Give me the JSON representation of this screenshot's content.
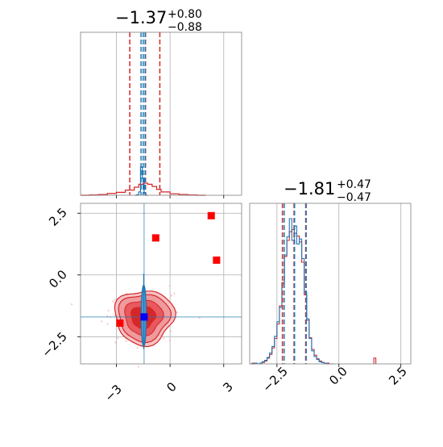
{
  "chart_data": [
    {
      "panel": "marginal-param-1",
      "type": "histogram",
      "title": {
        "value": "−1.37",
        "plus": "+0.80",
        "minus": "−0.88"
      },
      "xlim": [
        -5,
        4
      ],
      "grid": true,
      "series": [
        {
          "color": "#d62728",
          "bin_edges": [
            -5.0,
            -4.5,
            -4.0,
            -3.5,
            -3.0,
            -2.5,
            -2.0,
            -1.75,
            -1.5,
            -1.25,
            -1.0,
            -0.75,
            -0.5,
            0.0,
            0.5,
            1.0,
            1.5,
            2.0
          ],
          "counts": [
            0,
            1,
            2,
            5,
            8,
            14,
            22,
            30,
            33,
            30,
            24,
            16,
            9,
            4,
            2,
            1,
            0
          ],
          "quantile_lines": [
            -2.25,
            -1.37,
            -0.57
          ]
        },
        {
          "color": "#1f77b4",
          "bin_edges": [
            -1.95,
            -1.85,
            -1.75,
            -1.65,
            -1.55,
            -1.45,
            -1.35,
            -1.25
          ],
          "counts": [
            0,
            2,
            12,
            100,
            60,
            8,
            0
          ],
          "quantile_lines": [
            -1.62,
            -1.5,
            -1.39
          ]
        }
      ]
    },
    {
      "panel": "2d-contour",
      "type": "contour",
      "xlim": [
        -5,
        4
      ],
      "ylim": [
        -3.6,
        2.9
      ],
      "xticks": [
        "−3",
        "0",
        "3"
      ],
      "yticks": [
        "2.5",
        "0.0",
        "−2.5"
      ],
      "grid": true,
      "red_outliers": [
        [
          2.3,
          2.4
        ],
        [
          -0.8,
          1.5
        ],
        [
          2.6,
          0.6
        ],
        [
          -2.8,
          -1.95
        ]
      ],
      "blue_marker": [
        -1.45,
        -1.7
      ],
      "reference_lines": {
        "x": -1.45,
        "y": -1.7
      }
    },
    {
      "panel": "marginal-param-2",
      "type": "histogram",
      "title": {
        "value": "−1.81",
        "plus": "+0.47",
        "minus": "−0.47"
      },
      "xlim": [
        -3.6,
        2.9
      ],
      "xticks": [
        "−2.5",
        "0.0",
        "2.5"
      ],
      "grid": true,
      "series": [
        {
          "color": "#d62728",
          "bin_edges": [
            -3.6,
            -3.5,
            -3.4,
            -3.3,
            -3.2,
            -3.1,
            -3.0,
            -2.9,
            -2.8,
            -2.7,
            -2.6,
            -2.5,
            -2.4,
            -2.3,
            -2.2,
            -2.1,
            -2.0,
            -1.9,
            -1.8,
            -1.7,
            -1.6,
            -1.5,
            -1.4,
            -1.3,
            -1.2,
            -1.1,
            -1.0,
            -0.9,
            -0.8,
            -0.7,
            -0.6,
            -0.5,
            -0.4,
            -0.3,
            -0.2
          ],
          "counts": [
            0,
            1,
            1,
            0,
            1,
            2,
            4,
            8,
            13,
            22,
            35,
            55,
            80,
            112,
            148,
            170,
            182,
            185,
            180,
            176,
            168,
            140,
            95,
            60,
            36,
            20,
            12,
            7,
            4,
            2,
            1,
            1,
            0,
            0
          ],
          "quantile_lines": [
            -2.28,
            -1.81,
            -1.34
          ]
        },
        {
          "color": "#1f77b4",
          "bin_edges": [
            -3.6,
            -3.5,
            -3.4,
            -3.3,
            -3.2,
            -3.1,
            -3.0,
            -2.9,
            -2.8,
            -2.7,
            -2.6,
            -2.5,
            -2.4,
            -2.3,
            -2.2,
            -2.1,
            -2.0,
            -1.9,
            -1.8,
            -1.7,
            -1.6,
            -1.5,
            -1.4,
            -1.3,
            -1.2,
            -1.1,
            -1.0,
            -0.9,
            -0.8,
            -0.7,
            -0.6,
            -0.5,
            -0.4,
            -0.3,
            -0.2
          ],
          "counts": [
            0,
            0,
            1,
            0,
            1,
            3,
            5,
            9,
            15,
            24,
            38,
            58,
            78,
            110,
            150,
            175,
            200,
            170,
            190,
            165,
            172,
            145,
            98,
            62,
            35,
            18,
            10,
            6,
            3,
            2,
            1,
            0,
            0,
            0
          ],
          "quantile_lines": [
            -2.21,
            -1.79,
            -1.32
          ]
        }
      ],
      "isolated_bar": {
        "x": 1.45,
        "count": 8
      }
    }
  ]
}
